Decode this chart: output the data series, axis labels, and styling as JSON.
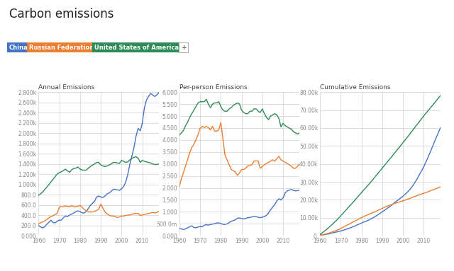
{
  "title": "Carbon emissions",
  "legend_labels": [
    "China",
    "Russian Federation",
    "United States of America"
  ],
  "legend_colors": [
    "#4472c4",
    "#ed7d31",
    "#2e8b57"
  ],
  "colors": {
    "china": "#4472c4",
    "russia": "#ed7d31",
    "usa": "#2e8b57"
  },
  "years": [
    1960,
    1961,
    1962,
    1963,
    1964,
    1965,
    1966,
    1967,
    1968,
    1969,
    1970,
    1971,
    1972,
    1973,
    1974,
    1975,
    1976,
    1977,
    1978,
    1979,
    1980,
    1981,
    1982,
    1983,
    1984,
    1985,
    1986,
    1987,
    1988,
    1989,
    1990,
    1991,
    1992,
    1993,
    1994,
    1995,
    1996,
    1997,
    1998,
    1999,
    2000,
    2001,
    2002,
    2003,
    2004,
    2005,
    2006,
    2007,
    2008,
    2009,
    2010,
    2011,
    2012,
    2013,
    2014,
    2015,
    2016,
    2017,
    2018
  ],
  "annual_china": [
    200,
    170,
    155,
    175,
    225,
    265,
    305,
    255,
    255,
    285,
    305,
    305,
    355,
    385,
    375,
    405,
    425,
    445,
    475,
    485,
    475,
    445,
    445,
    475,
    535,
    595,
    635,
    675,
    755,
    775,
    755,
    745,
    775,
    815,
    835,
    865,
    905,
    905,
    895,
    885,
    915,
    965,
    1045,
    1195,
    1395,
    1555,
    1725,
    1945,
    2095,
    2045,
    2195,
    2495,
    2645,
    2715,
    2775,
    2745,
    2715,
    2745,
    2795
  ],
  "annual_russia": [
    230,
    255,
    270,
    290,
    320,
    350,
    375,
    390,
    415,
    440,
    560,
    570,
    565,
    580,
    575,
    565,
    590,
    565,
    565,
    575,
    590,
    555,
    515,
    485,
    465,
    465,
    465,
    475,
    495,
    515,
    620,
    540,
    460,
    430,
    400,
    385,
    385,
    375,
    355,
    365,
    385,
    385,
    395,
    405,
    405,
    415,
    435,
    435,
    435,
    395,
    405,
    415,
    425,
    435,
    445,
    455,
    445,
    455,
    475
  ],
  "annual_usa": [
    790,
    820,
    855,
    905,
    950,
    1000,
    1050,
    1105,
    1155,
    1205,
    1230,
    1250,
    1270,
    1300,
    1260,
    1240,
    1290,
    1310,
    1320,
    1340,
    1300,
    1280,
    1280,
    1280,
    1320,
    1350,
    1380,
    1400,
    1430,
    1430,
    1380,
    1360,
    1350,
    1360,
    1380,
    1400,
    1430,
    1430,
    1420,
    1410,
    1470,
    1450,
    1430,
    1440,
    1480,
    1510,
    1530,
    1540,
    1510,
    1430,
    1470,
    1450,
    1440,
    1430,
    1420,
    1400,
    1390,
    1390,
    1400
  ],
  "perperson_china": [
    310,
    285,
    265,
    285,
    335,
    375,
    415,
    345,
    335,
    365,
    385,
    375,
    435,
    465,
    445,
    475,
    485,
    505,
    535,
    535,
    515,
    475,
    475,
    495,
    545,
    605,
    635,
    665,
    735,
    745,
    715,
    705,
    725,
    755,
    765,
    785,
    805,
    795,
    775,
    755,
    775,
    805,
    855,
    955,
    1085,
    1195,
    1305,
    1455,
    1545,
    1495,
    1585,
    1785,
    1875,
    1905,
    1935,
    1895,
    1875,
    1885,
    1905
  ],
  "perperson_russia": [
    2050,
    2380,
    2650,
    2920,
    3180,
    3470,
    3680,
    3820,
    4020,
    4220,
    4480,
    4570,
    4520,
    4570,
    4520,
    4420,
    4570,
    4370,
    4370,
    4420,
    4730,
    4070,
    3370,
    3170,
    2970,
    2770,
    2720,
    2670,
    2520,
    2620,
    2770,
    2770,
    2820,
    2920,
    2930,
    2970,
    3120,
    3130,
    3120,
    2820,
    2890,
    2970,
    3020,
    3070,
    3120,
    3170,
    3120,
    3220,
    3320,
    3170,
    3120,
    3070,
    3020,
    2970,
    2900,
    2820,
    2820,
    2900,
    3020
  ],
  "perperson_usa": [
    4200,
    4300,
    4400,
    4600,
    4750,
    4950,
    5100,
    5250,
    5400,
    5550,
    5600,
    5600,
    5600,
    5700,
    5500,
    5350,
    5500,
    5550,
    5550,
    5600,
    5400,
    5250,
    5200,
    5200,
    5300,
    5350,
    5450,
    5500,
    5550,
    5500,
    5250,
    5150,
    5100,
    5100,
    5200,
    5200,
    5300,
    5300,
    5200,
    5150,
    5300,
    5100,
    4950,
    4850,
    5000,
    5050,
    5100,
    5050,
    4900,
    4550,
    4700,
    4600,
    4550,
    4500,
    4450,
    4350,
    4300,
    4250,
    4300
  ],
  "cumulative_china": [
    0.2,
    0.4,
    0.6,
    0.8,
    1.0,
    1.3,
    1.6,
    1.9,
    2.1,
    2.4,
    2.7,
    3.0,
    3.4,
    3.8,
    4.2,
    4.6,
    5.1,
    5.5,
    6.1,
    6.6,
    7.1,
    7.6,
    8.0,
    8.5,
    9.1,
    9.7,
    10.3,
    11.0,
    11.8,
    12.6,
    13.4,
    14.1,
    14.9,
    15.8,
    16.6,
    17.5,
    18.5,
    19.4,
    20.3,
    21.2,
    22.1,
    23.1,
    24.2,
    25.4,
    26.8,
    28.4,
    30.2,
    32.1,
    34.3,
    36.3,
    38.5,
    41.0,
    43.6,
    46.3,
    49.1,
    51.9,
    54.7,
    57.4,
    60.2
  ],
  "cumulative_russia": [
    0.2,
    0.5,
    0.8,
    1.1,
    1.4,
    1.8,
    2.2,
    2.6,
    3.1,
    3.5,
    4.1,
    4.7,
    5.3,
    5.9,
    6.5,
    7.1,
    7.7,
    8.3,
    8.9,
    9.5,
    10.1,
    10.7,
    11.2,
    11.7,
    12.2,
    12.7,
    13.2,
    13.7,
    14.2,
    14.7,
    15.3,
    15.8,
    16.3,
    16.8,
    17.2,
    17.6,
    18.0,
    18.4,
    18.8,
    19.1,
    19.5,
    19.9,
    20.3,
    20.7,
    21.1,
    21.6,
    22.0,
    22.5,
    22.9,
    23.3,
    23.7,
    24.1,
    24.5,
    25.0,
    25.4,
    25.9,
    26.3,
    26.8,
    27.3
  ],
  "cumulative_usa": [
    0.8,
    1.6,
    2.5,
    3.4,
    4.4,
    5.4,
    6.5,
    7.6,
    8.7,
    9.9,
    11.2,
    12.4,
    13.7,
    15.0,
    16.3,
    17.5,
    18.8,
    20.1,
    21.5,
    22.8,
    24.1,
    25.4,
    26.7,
    28.0,
    29.3,
    30.7,
    32.1,
    33.5,
    34.9,
    36.3,
    37.7,
    39.1,
    40.5,
    41.9,
    43.3,
    44.7,
    46.2,
    47.6,
    49.0,
    50.4,
    51.9,
    53.4,
    54.8,
    56.3,
    57.8,
    59.3,
    60.8,
    62.3,
    63.8,
    65.3,
    66.8,
    68.2,
    69.6,
    71.0,
    72.4,
    73.8,
    75.2,
    76.6,
    78.0
  ],
  "subplot_titles": [
    "Annual Emissions",
    "Per-person Emissions",
    "Cumulative Emissions"
  ],
  "background_color": "#ffffff",
  "grid_color": "#d0d0d0",
  "tick_label_color": "#888888",
  "subplot_title_color": "#444444",
  "title_color": "#222222"
}
